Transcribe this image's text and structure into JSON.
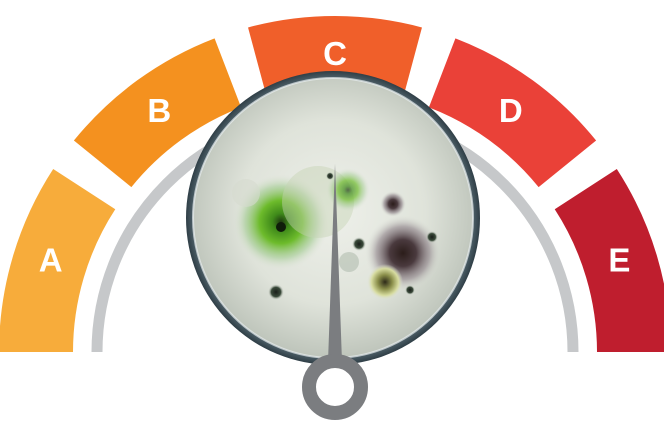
{
  "gauge": {
    "segments": [
      {
        "label": "A",
        "color": "#f7ac3b"
      },
      {
        "label": "B",
        "color": "#f4911f"
      },
      {
        "label": "C",
        "color": "#f05f2a"
      },
      {
        "label": "D",
        "color": "#ea4138"
      },
      {
        "label": "E",
        "color": "#bf1e2e"
      }
    ],
    "inner_track_color": "#c6c8ca",
    "needle_color": "#7b7d80",
    "needle_level": 0.5,
    "center_icon": "petri-dish-with-mold-colonies"
  }
}
